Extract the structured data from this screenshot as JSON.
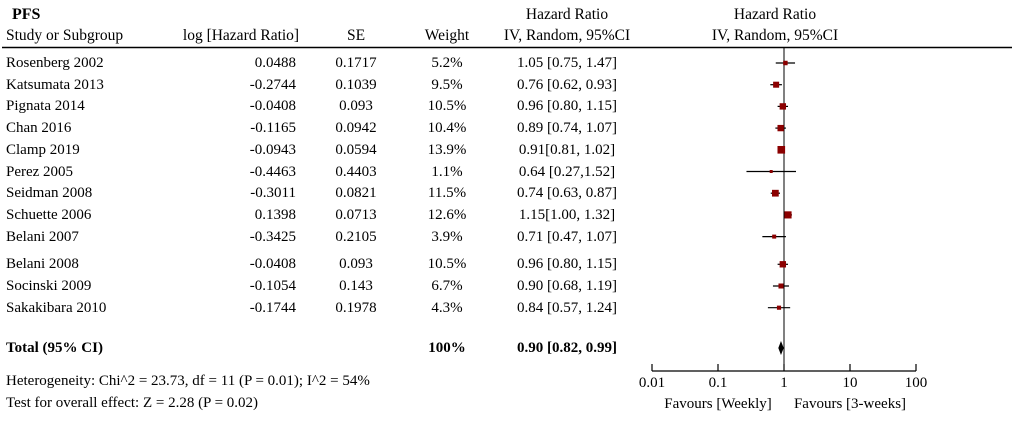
{
  "title": "PFS",
  "columns": {
    "study": "Study or Subgroup",
    "log_hazard_ratio": "log [Hazard Ratio]",
    "se": "SE",
    "weight": "Weight",
    "hazard_ratio": "Hazard Ratio",
    "iv_random": "IV, Random, 95%CI"
  },
  "chart_data": {
    "type": "forest",
    "x_scale": "log",
    "x_ticks": [
      0.01,
      0.1,
      1,
      10,
      100
    ],
    "x_tick_labels": [
      "0.01",
      "0.1",
      "1",
      "10",
      "100"
    ],
    "x_range": [
      0.01,
      100
    ],
    "reference_value": 1,
    "marker_color": "#8b0000",
    "favours_left": "Favours [Weekly]",
    "favours_right": "Favours [3-weeks]",
    "studies": [
      {
        "name": "Rosenberg 2002",
        "log_hr": "0.0488",
        "se": "0.1717",
        "weight": "5.2%",
        "weight_val": 5.2,
        "ci_label": "1.05 [0.75, 1.47]",
        "hr": 1.05,
        "lo": 0.75,
        "hi": 1.47
      },
      {
        "name": "Katsumata 2013",
        "log_hr": "-0.2744",
        "se": "0.1039",
        "weight": "9.5%",
        "weight_val": 9.5,
        "ci_label": "0.76 [0.62, 0.93]",
        "hr": 0.76,
        "lo": 0.62,
        "hi": 0.93
      },
      {
        "name": "Pignata 2014",
        "log_hr": "-0.0408",
        "se": "0.093",
        "weight": "10.5%",
        "weight_val": 10.5,
        "ci_label": "0.96 [0.80, 1.15]",
        "hr": 0.96,
        "lo": 0.8,
        "hi": 1.15
      },
      {
        "name": "Chan 2016",
        "log_hr": "-0.1165",
        "se": "0.0942",
        "weight": "10.4%",
        "weight_val": 10.4,
        "ci_label": "0.89 [0.74, 1.07]",
        "hr": 0.89,
        "lo": 0.74,
        "hi": 1.07
      },
      {
        "name": "Clamp 2019",
        "log_hr": "-0.0943",
        "se": "0.0594",
        "weight": "13.9%",
        "weight_val": 13.9,
        "ci_label": "0.91[0.81, 1.02]",
        "hr": 0.91,
        "lo": 0.81,
        "hi": 1.02
      },
      {
        "name": "Perez 2005",
        "log_hr": "-0.4463",
        "se": "0.4403",
        "weight": "1.1%",
        "weight_val": 1.1,
        "ci_label": "0.64 [0.27,1.52]",
        "hr": 0.64,
        "lo": 0.27,
        "hi": 1.52
      },
      {
        "name": "Seidman 2008",
        "log_hr": "-0.3011",
        "se": "0.0821",
        "weight": "11.5%",
        "weight_val": 11.5,
        "ci_label": "0.74 [0.63, 0.87]",
        "hr": 0.74,
        "lo": 0.63,
        "hi": 0.87
      },
      {
        "name": "Schuette 2006",
        "log_hr": "0.1398",
        "se": "0.0713",
        "weight": "12.6%",
        "weight_val": 12.6,
        "ci_label": "1.15[1.00, 1.32]",
        "hr": 1.15,
        "lo": 1.0,
        "hi": 1.32
      },
      {
        "name": "Belani 2007",
        "log_hr": "-0.3425",
        "se": "0.2105",
        "weight": "3.9%",
        "weight_val": 3.9,
        "ci_label": "0.71 [0.47, 1.07]",
        "hr": 0.71,
        "lo": 0.47,
        "hi": 1.07
      },
      {
        "name": "Belani 2008",
        "log_hr": "-0.0408",
        "se": "0.093",
        "weight": "10.5%",
        "weight_val": 10.5,
        "ci_label": "0.96 [0.80, 1.15]",
        "hr": 0.96,
        "lo": 0.8,
        "hi": 1.15
      },
      {
        "name": "Socinski 2009",
        "log_hr": "-0.1054",
        "se": "0.143",
        "weight": "6.7%",
        "weight_val": 6.7,
        "ci_label": "0.90 [0.68, 1.19]",
        "hr": 0.9,
        "lo": 0.68,
        "hi": 1.19
      },
      {
        "name": "Sakakibara 2010",
        "log_hr": "-0.1744",
        "se": "0.1978",
        "weight": "4.3%",
        "weight_val": 4.3,
        "ci_label": "0.84 [0.57, 1.24]",
        "hr": 0.84,
        "lo": 0.57,
        "hi": 1.24
      }
    ],
    "total": {
      "name": "Total (95% CI)",
      "weight": "100%",
      "ci_label": "0.90 [0.82, 0.99]",
      "hr": 0.9,
      "lo": 0.82,
      "hi": 0.99
    }
  },
  "footer": {
    "heterogeneity": "Heterogeneity: Chi^2 = 23.73, df = 11 (P = 0.01); I^2 = 54%",
    "overall_effect": "Test for overall effect: Z = 2.28 (P = 0.02)"
  }
}
